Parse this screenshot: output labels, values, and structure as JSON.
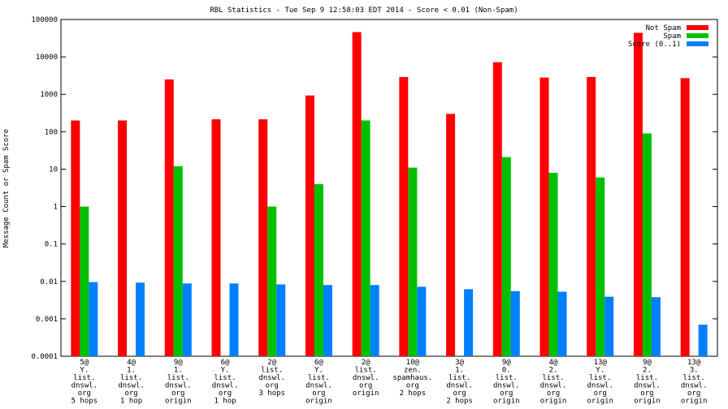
{
  "chart_data": {
    "type": "bar",
    "title": "RBL Statistics - Tue Sep  9 12:58:03 EDT 2014 - Score < 0.01 (Non-Spam)",
    "xlabel": "",
    "ylabel": "Message Count or Spam Score",
    "yscale": "log",
    "ylim": [
      0.0001,
      100000
    ],
    "yticks": [
      "0.0001",
      "0.001",
      "0.01",
      "0.1",
      "1",
      "10",
      "100",
      "1000",
      "10000",
      "100000"
    ],
    "legend_position": "top-right",
    "categories": [
      [
        "5@",
        "Y.",
        "list.",
        "dnswl.",
        "org",
        "5 hops"
      ],
      [
        "4@",
        "1.",
        "list.",
        "dnswl.",
        "org",
        "1 hop"
      ],
      [
        "9@",
        "1.",
        "list.",
        "dnswl.",
        "org",
        "origin"
      ],
      [
        "6@",
        "Y.",
        "list.",
        "dnswl.",
        "org",
        "1 hop"
      ],
      [
        "2@",
        "list.",
        "dnswl.",
        "org",
        "3 hops"
      ],
      [
        "6@",
        "Y.",
        "list.",
        "dnswl.",
        "org",
        "origin"
      ],
      [
        "2@",
        "list.",
        "dnswl.",
        "org",
        "origin"
      ],
      [
        "10@",
        "zen.",
        "spamhaus.",
        "org",
        "2 hops"
      ],
      [
        "3@",
        "1.",
        "list.",
        "dnswl.",
        "org",
        "2 hops"
      ],
      [
        "9@",
        "0.",
        "list.",
        "dnswl.",
        "org",
        "origin"
      ],
      [
        "4@",
        "2.",
        "list.",
        "dnswl.",
        "org",
        "origin"
      ],
      [
        "13@",
        "Y.",
        "list.",
        "dnswl.",
        "org",
        "origin"
      ],
      [
        "9@",
        "2.",
        "list.",
        "dnswl.",
        "org",
        "origin"
      ],
      [
        "13@",
        "3.",
        "list.",
        "dnswl.",
        "org",
        "origin"
      ]
    ],
    "series": [
      {
        "name": "Not Spam",
        "color": "#ff0000",
        "values": [
          200,
          200,
          2500,
          215,
          215,
          930,
          46000,
          2900,
          300,
          7200,
          2800,
          2900,
          44000,
          2700
        ]
      },
      {
        "name": "Spam",
        "color": "#00c000",
        "values": [
          1,
          null,
          12,
          null,
          1,
          4,
          200,
          11,
          null,
          21,
          8,
          6,
          90,
          null
        ]
      },
      {
        "name": "Score (0..1)",
        "color": "#0080ff",
        "values": [
          0.0096,
          0.0093,
          0.0088,
          0.0088,
          0.0083,
          0.008,
          0.008,
          0.0072,
          0.0062,
          0.0055,
          0.0053,
          0.0039,
          0.0038,
          0.0007
        ]
      }
    ]
  }
}
